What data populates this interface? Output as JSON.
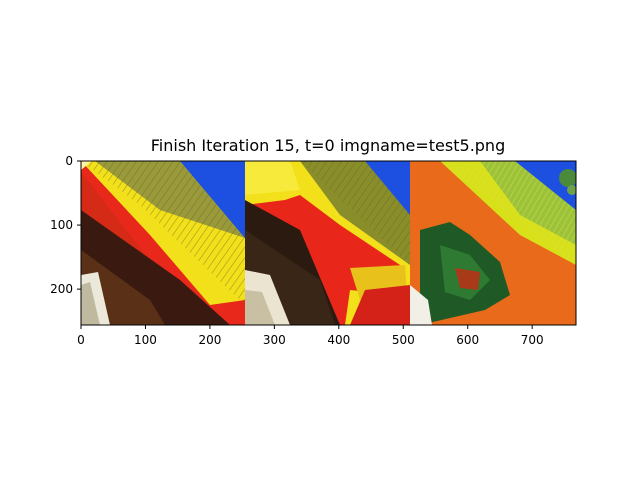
{
  "title": "Finish Iteration 15, t=0 imgname=test5.png",
  "x_ticks": [
    "0",
    "100",
    "200",
    "300",
    "400",
    "500",
    "600",
    "700"
  ],
  "y_ticks": [
    "0",
    "100",
    "200"
  ],
  "x_tick_values": [
    0,
    100,
    200,
    300,
    400,
    500,
    600,
    700
  ],
  "y_tick_values": [
    0,
    100,
    200
  ],
  "image_extent": {
    "x": [
      0,
      768
    ],
    "y": [
      256,
      0
    ]
  },
  "panels": [
    {
      "name": "panel-1",
      "x_range": [
        0,
        256
      ],
      "content": "red-orange diagonal surface with yellow and green textured band, blue sky at top-right, dark brown lower area, white corner at bottom-left"
    },
    {
      "name": "panel-2",
      "x_range": [
        256,
        512
      ],
      "content": "yellow and olive diagonal band, blue sky, bright red polygon shapes, dark textured lower-left area, white streak"
    },
    {
      "name": "panel-3",
      "x_range": [
        512,
        768
      ],
      "content": "orange surface with yellow-green diagonal stripes, blue sky with foliage top-right, dark green patch at left"
    }
  ],
  "colors": {
    "red": "#e8281a",
    "orange": "#e86a1a",
    "yellow": "#f2e01a",
    "olive": "#8a8e2a",
    "sky": "#1d4fe0",
    "dark": "#3a1a10",
    "green": "#1f5a26"
  }
}
